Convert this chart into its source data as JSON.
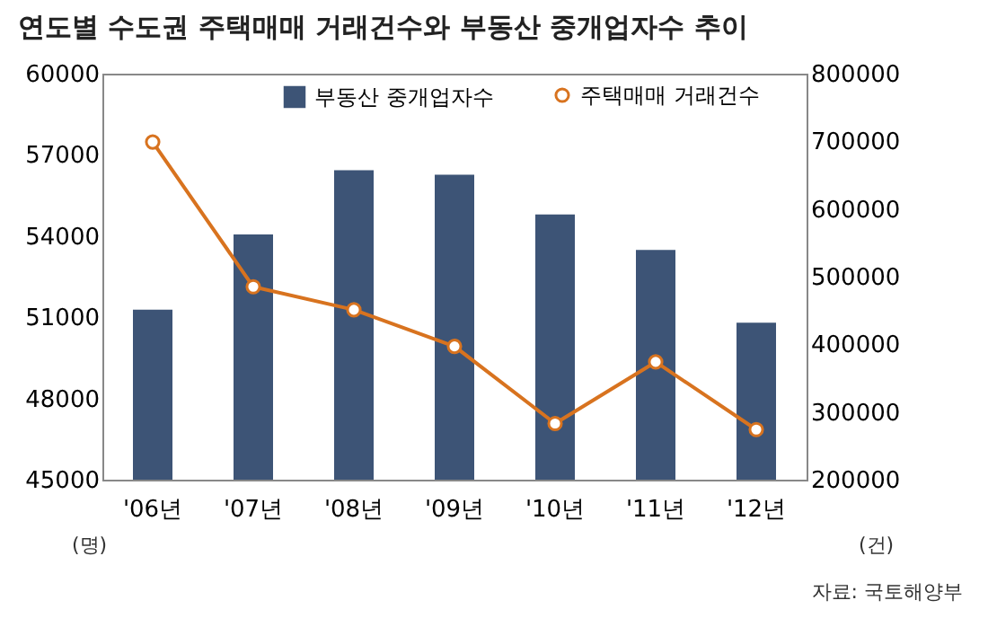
{
  "chart_data": {
    "type": "bar",
    "title": "연도별 수도권 주택매매 거래건수와 부동산 중개업자수 추이",
    "categories": [
      "'06년",
      "'07년",
      "'08년",
      "'09년",
      "'10년",
      "'11년",
      "'12년"
    ],
    "series": [
      {
        "name": "부동산 중개업자수",
        "color": "#3d5476",
        "values": [
          51280,
          54060,
          56430,
          56270,
          54800,
          53490,
          50800
        ]
      },
      {
        "name": "주택매매 거래건수",
        "type": "line",
        "axis": "y2",
        "color": "#d8731f",
        "values": [
          699000,
          485000,
          451000,
          397000,
          283000,
          374000,
          274000
        ]
      }
    ],
    "ylim": [
      45000,
      60000
    ],
    "yticks": [
      45000,
      48000,
      51000,
      54000,
      57000,
      60000
    ],
    "y2lim": [
      200000,
      800000
    ],
    "y2ticks": [
      200000,
      300000,
      400000,
      500000,
      600000,
      700000,
      800000
    ],
    "legend": "top right",
    "marker": "circle",
    "grid": false,
    "annotations": [
      "(명)",
      "(건)",
      "자료: 국토해양부"
    ]
  }
}
